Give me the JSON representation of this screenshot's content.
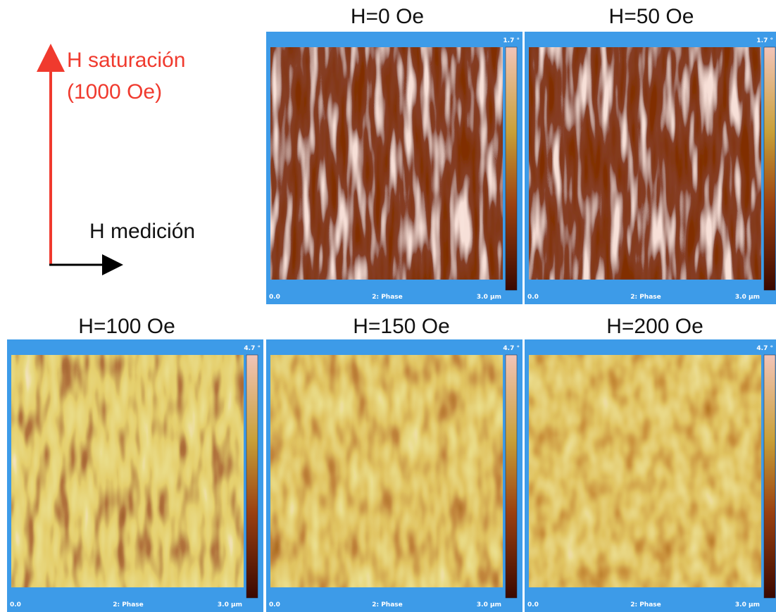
{
  "diagram": {
    "saturation_label": "H saturación",
    "saturation_value": "(1000 Oe)",
    "measurement_label": "H medición"
  },
  "panels": [
    {
      "title": "H=0 Oe",
      "scale_max": "1.7 °",
      "scale_min": "0.0",
      "channel": "2: Phase",
      "size": "3.0 µm"
    },
    {
      "title": "H=50 Oe",
      "scale_max": "1.7 °",
      "scale_min": "0.0",
      "channel": "2: Phase",
      "size": "3.0 µm"
    },
    {
      "title": "H=100 Oe",
      "scale_max": "4.7 °",
      "scale_min": "0.0",
      "channel": "2: Phase",
      "size": "3.0 µm"
    },
    {
      "title": "H=150 Oe",
      "scale_max": "4.7 °",
      "scale_min": "0.0",
      "channel": "2: Phase",
      "size": "3.0 µm"
    },
    {
      "title": "H=200 Oe",
      "scale_max": "4.7 °",
      "scale_min": "0.0",
      "channel": "2: Phase",
      "size": "3.0 µm"
    }
  ]
}
